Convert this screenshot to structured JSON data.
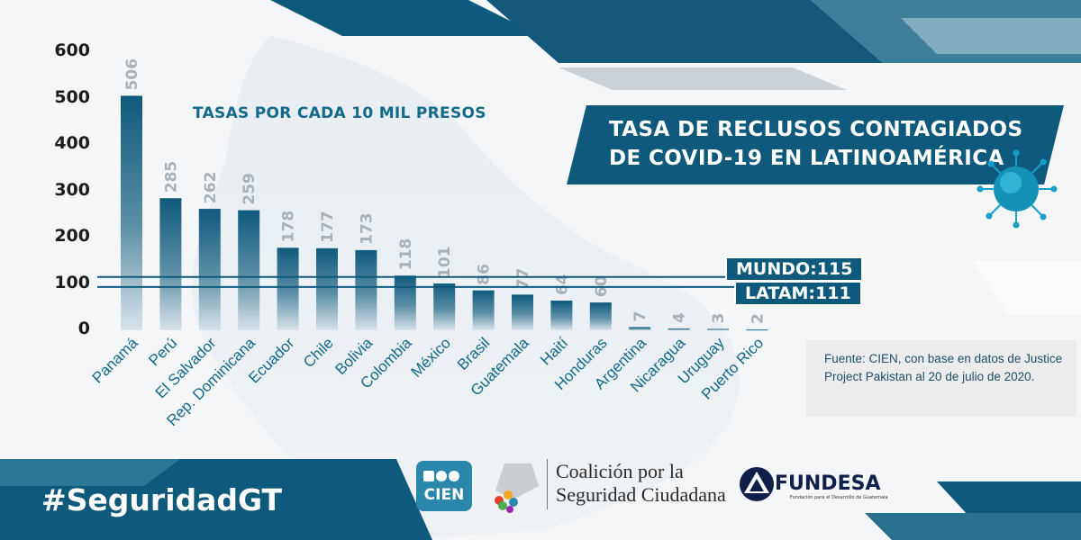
{
  "chart_data": {
    "type": "bar",
    "title": "TASA DE RECLUSOS CONTAGIADOS DE COVID-19 EN LATINOAMÉRICA",
    "subtitle": "TASAS POR CADA 10 MIL PRESOS",
    "categories": [
      "Panamá",
      "Perú",
      "El Salvador",
      "Rep. Dominicana",
      "Ecuador",
      "Chile",
      "Bolivia",
      "Colombia",
      "México",
      "Brasil",
      "Guatemala",
      "Haití",
      "Honduras",
      "Argentina",
      "Nicaragua",
      "Uruguay",
      "Puerto Rico"
    ],
    "values": [
      506,
      285,
      262,
      259,
      178,
      177,
      173,
      118,
      101,
      86,
      77,
      64,
      60,
      7,
      4,
      3,
      2
    ],
    "ylim": [
      0,
      600
    ],
    "yticks": [
      0,
      100,
      200,
      300,
      400,
      500,
      600
    ],
    "reference_lines": [
      {
        "label": "MUNDO:115",
        "value": 115
      },
      {
        "label": "LATAM:111",
        "value": 111
      }
    ],
    "xlabel": "",
    "ylabel": ""
  },
  "source_note": "Fuente: CIEN, con base en datos de Justice Project Pakistan al 20 de julio de 2020.",
  "hashtag": "#SeguridadGT",
  "logos": {
    "cien": "CIEN",
    "coalicion_line1": "Coalición por la",
    "coalicion_line2": "Seguridad Ciudadana",
    "fundesa": "FUNDESA",
    "fundesa_tagline": "Fundación para el Desarrollo de Guatemala"
  },
  "colors": {
    "bar_top": "#0f5a7c",
    "bar_bottom": "#d9e3ea",
    "value_label": "#a8b1b8",
    "category_label": "#136a89",
    "accent": "#0f5a7c"
  }
}
